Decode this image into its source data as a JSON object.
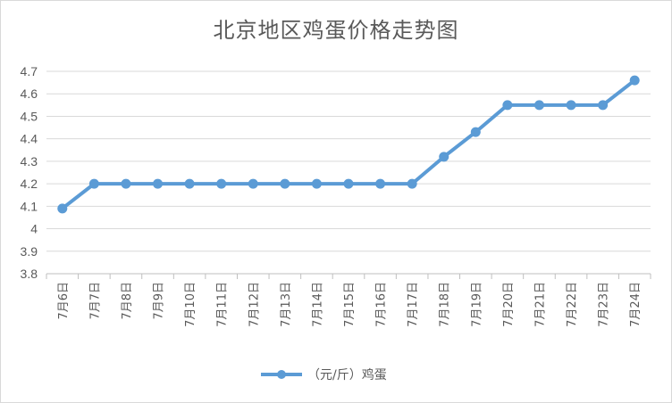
{
  "chart_data": {
    "type": "line",
    "title": "北京地区鸡蛋价格走势图",
    "categories": [
      "7月6日",
      "7月7日",
      "7月8日",
      "7月9日",
      "7月10日",
      "7月11日",
      "7月12日",
      "7月13日",
      "7月14日",
      "7月15日",
      "7月16日",
      "7月17日",
      "7月18日",
      "7月19日",
      "7月20日",
      "7月21日",
      "7月22日",
      "7月23日",
      "7月24日"
    ],
    "series": [
      {
        "name": "（元/斤）鸡蛋",
        "values": [
          4.09,
          4.2,
          4.2,
          4.2,
          4.2,
          4.2,
          4.2,
          4.2,
          4.2,
          4.2,
          4.2,
          4.2,
          4.32,
          4.43,
          4.55,
          4.55,
          4.55,
          4.55,
          4.66
        ],
        "color": "#5b9bd5"
      }
    ],
    "yticks": [
      "3.8",
      "3.9",
      "4",
      "4.1",
      "4.2",
      "4.3",
      "4.4",
      "4.5",
      "4.6",
      "4.7"
    ],
    "ylim": [
      3.8,
      4.7
    ],
    "grid": true,
    "legend": "bottom"
  }
}
